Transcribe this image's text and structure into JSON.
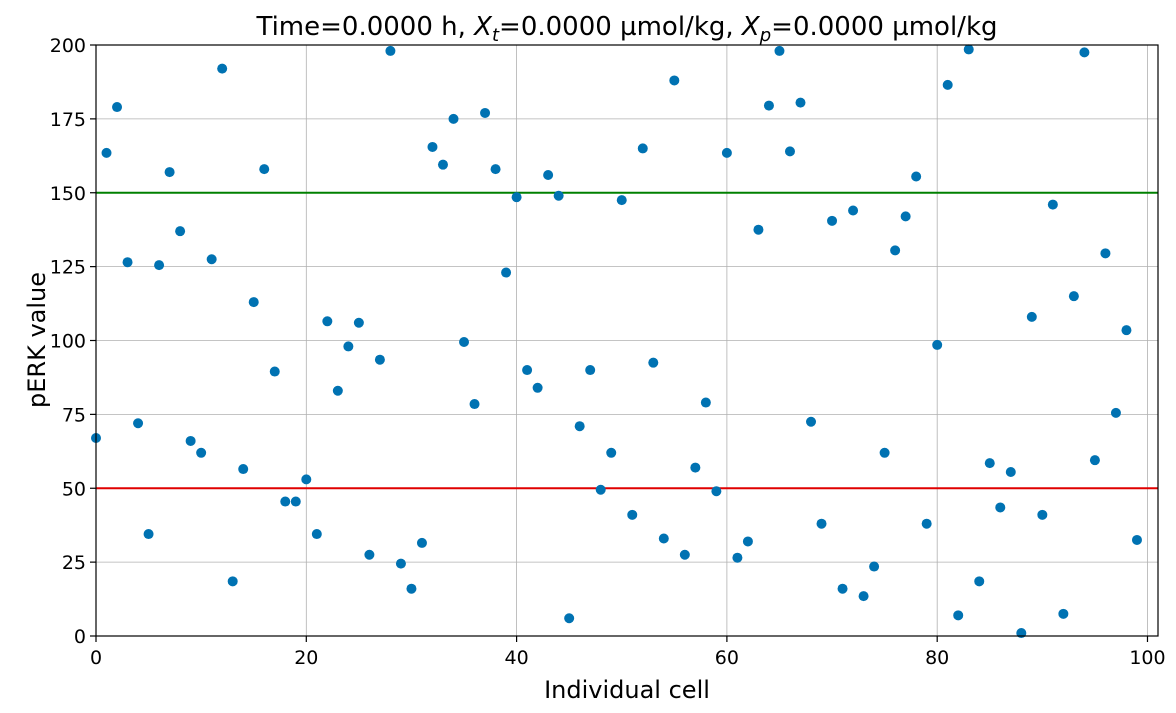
{
  "colors": {
    "points": "#0072B2",
    "upper_threshold": "#008000",
    "lower_threshold": "#e00000",
    "grid": "#b0b0b0"
  },
  "chart_data": {
    "type": "scatter",
    "title": {
      "prefix": "Time=0.0000 h, ",
      "xt_var": "X",
      "xt_sub": "t",
      "xt_value": "=0.0000 µmol/kg, ",
      "xp_var": "X",
      "xp_sub": "p",
      "xp_value": "=0.0000 µmol/kg"
    },
    "xlabel": "Individual cell",
    "ylabel": "pERK value",
    "xlim": [
      0,
      101
    ],
    "ylim": [
      0,
      200
    ],
    "xticks": [
      0,
      20,
      40,
      60,
      80,
      100
    ],
    "yticks": [
      0,
      25,
      50,
      75,
      100,
      125,
      150,
      175,
      200
    ],
    "grid": true,
    "hlines": [
      {
        "y": 150,
        "color": "#008000"
      },
      {
        "y": 50,
        "color": "#e00000"
      }
    ],
    "x": [
      0,
      1,
      2,
      3,
      4,
      5,
      6,
      7,
      8,
      9,
      10,
      11,
      12,
      13,
      14,
      15,
      16,
      17,
      18,
      19,
      20,
      21,
      22,
      23,
      24,
      25,
      26,
      27,
      28,
      29,
      30,
      31,
      32,
      33,
      34,
      35,
      36,
      37,
      38,
      39,
      40,
      41,
      42,
      43,
      44,
      45,
      46,
      47,
      48,
      49,
      50,
      51,
      52,
      53,
      54,
      55,
      56,
      57,
      58,
      59,
      60,
      61,
      62,
      63,
      64,
      65,
      66,
      67,
      68,
      69,
      70,
      71,
      72,
      73,
      74,
      75,
      76,
      77,
      78,
      79,
      80,
      81,
      82,
      83,
      84,
      85,
      86,
      87,
      88,
      89,
      90,
      91,
      92,
      93,
      94,
      95,
      96,
      97,
      98,
      99
    ],
    "y": [
      67,
      163.5,
      179,
      126.5,
      72,
      34.5,
      125.5,
      157,
      137,
      66,
      62,
      127.5,
      192,
      18.5,
      56.5,
      113,
      158,
      89.5,
      45.5,
      45.5,
      53,
      34.5,
      106.5,
      83,
      98,
      106,
      27.5,
      93.5,
      198,
      24.5,
      16,
      31.5,
      165.5,
      159.5,
      175,
      99.5,
      78.5,
      177,
      158,
      123,
      148.5,
      90,
      84,
      156,
      149,
      6,
      71,
      90,
      49.5,
      62,
      147.5,
      41,
      165,
      92.5,
      33,
      188,
      27.5,
      57,
      79,
      49,
      163.5,
      26.5,
      32,
      137.5,
      179.5,
      198,
      164,
      180.5,
      72.5,
      38,
      140.5,
      16,
      144,
      13.5,
      23.5,
      62,
      130.5,
      142,
      155.5,
      38,
      98.5,
      186.5,
      7,
      198.5,
      18.5,
      58.5,
      43.5,
      55.5,
      1,
      108,
      41,
      146,
      7.5,
      115,
      197.5,
      59.5,
      129.5,
      75.5,
      103.5,
      32.5
    ]
  }
}
